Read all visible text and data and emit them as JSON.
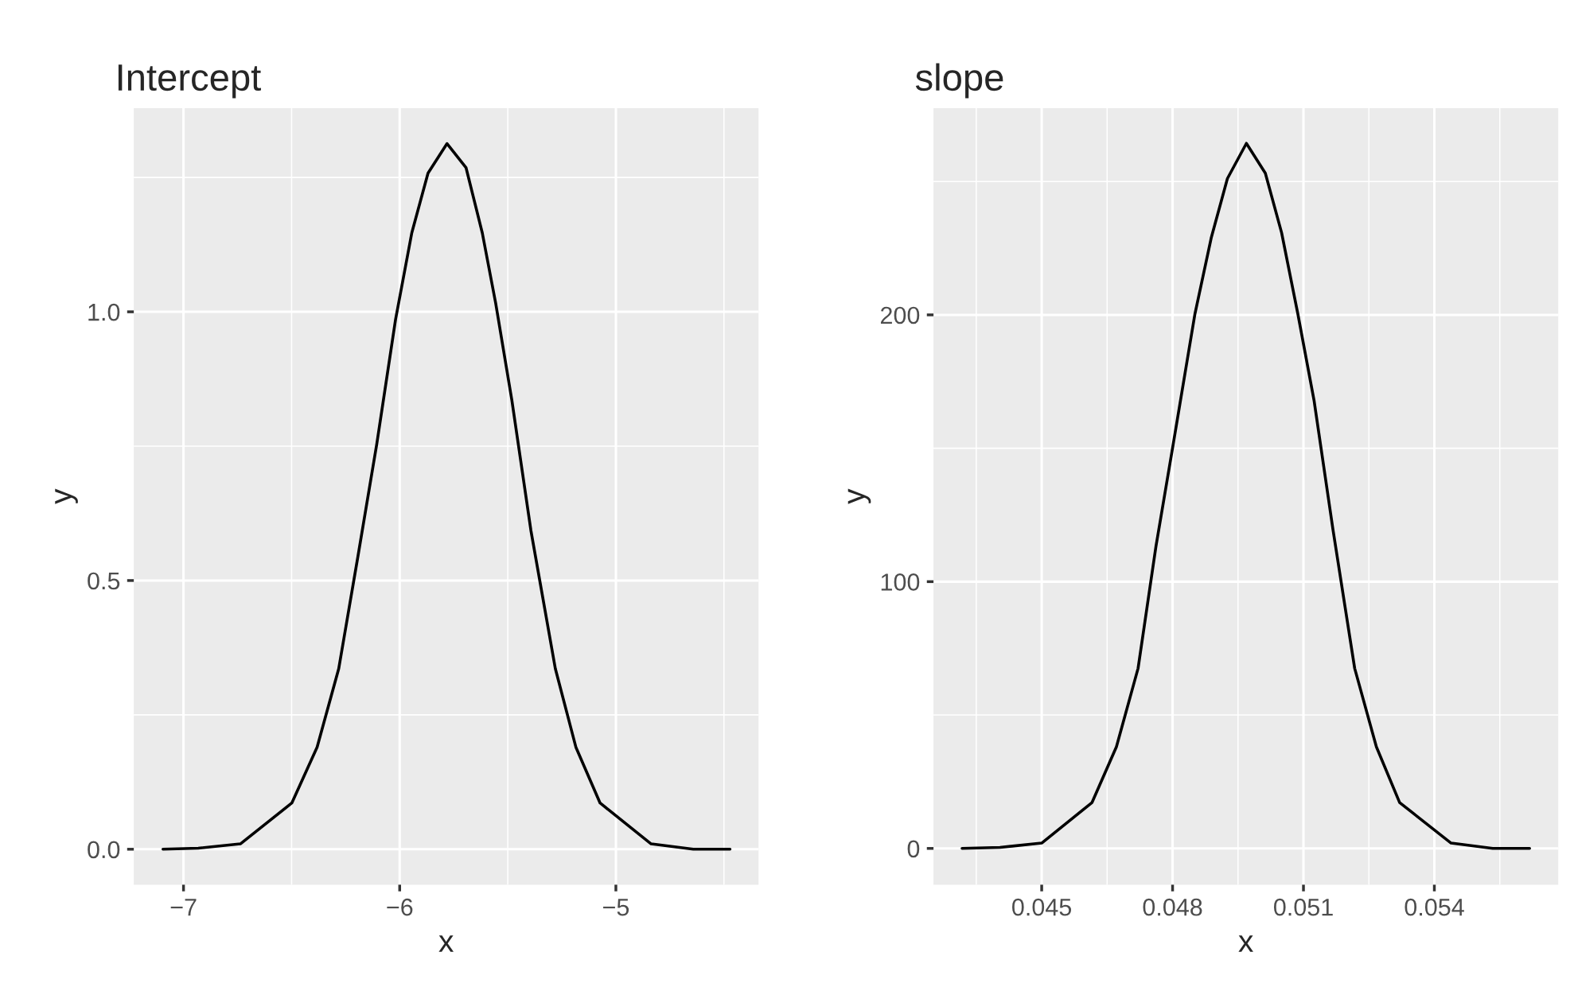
{
  "chart_data": [
    {
      "type": "line",
      "title": "Intercept",
      "xlabel": "x",
      "ylabel": "y",
      "grid": true,
      "marker": "none",
      "line_style": "solid",
      "x": [
        -7.095,
        -6.932,
        -6.737,
        -6.499,
        -6.382,
        -6.282,
        -6.194,
        -6.106,
        -6.019,
        -5.944,
        -5.869,
        -5.781,
        -5.693,
        -5.618,
        -5.556,
        -5.481,
        -5.393,
        -5.28,
        -5.185,
        -5.073,
        -4.837,
        -4.642,
        -4.472
      ],
      "series": [
        {
          "color": "#000000",
          "values": [
            0,
            0.002,
            0.01,
            0.086,
            0.19,
            0.336,
            0.543,
            0.754,
            0.986,
            1.147,
            1.258,
            1.313,
            1.268,
            1.147,
            1.016,
            0.835,
            0.593,
            0.336,
            0.19,
            0.086,
            0.01,
            0,
            0
          ]
        }
      ],
      "xlim": [
        -7.23,
        -4.34
      ],
      "xticks": [
        {
          "value": -7,
          "label": "−7"
        },
        {
          "value": -6,
          "label": "−6"
        },
        {
          "value": -5,
          "label": "−5"
        }
      ],
      "ylim": [
        -0.066,
        1.379
      ],
      "yticks": [
        {
          "value": 0,
          "label": "0.0"
        },
        {
          "value": 0.5,
          "label": "0.5"
        },
        {
          "value": 1,
          "label": "1.0"
        }
      ]
    },
    {
      "type": "line",
      "title": "slope",
      "xlabel": "x",
      "ylabel": "y",
      "grid": true,
      "marker": "none",
      "line_style": "solid",
      "x": [
        0.043175,
        0.044044,
        0.045,
        0.046154,
        0.046713,
        0.047209,
        0.047619,
        0.048016,
        0.048513,
        0.048885,
        0.049257,
        0.049692,
        0.050126,
        0.050499,
        0.050871,
        0.051243,
        0.051678,
        0.052174,
        0.052671,
        0.053204,
        0.054383,
        0.055339,
        0.056183
      ],
      "series": [
        {
          "color": "#000000",
          "values": [
            0,
            0.4,
            2.0,
            17.2,
            38.1,
            67.5,
            113.2,
            151.7,
            200.4,
            228.8,
            251.1,
            264.3,
            253.1,
            230.8,
            200.4,
            167.9,
            119.3,
            67.5,
            38.1,
            17.2,
            2.0,
            0,
            0
          ]
        }
      ],
      "xlim": [
        0.04252,
        0.05684
      ],
      "xticks": [
        0.045,
        0.048,
        0.051,
        0.054
      ],
      "ylim": [
        -13.6,
        277.5
      ],
      "yticks": [
        0,
        100,
        200
      ]
    }
  ]
}
